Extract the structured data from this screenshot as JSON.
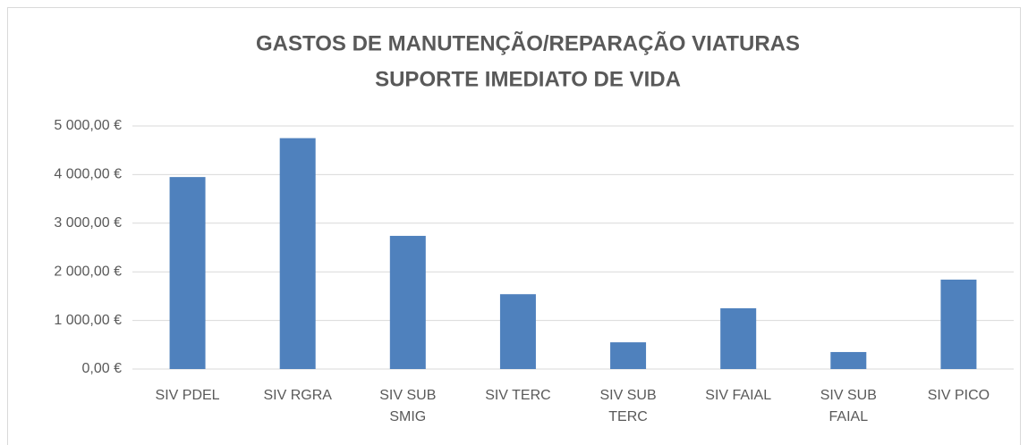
{
  "chart_data": {
    "type": "bar",
    "title": "GASTOS DE MANUTENÇÃO/REPARAÇÃO VIATURAS",
    "subtitle": "SUPORTE IMEDIATO DE VIDA",
    "categories": [
      "SIV PDEL",
      "SIV RGRA",
      "SIV SUB SMIG",
      "SIV TERC",
      "SIV SUB TERC",
      "SIV FAIAL",
      "SIV SUB FAIAL",
      "SIV PICO"
    ],
    "values": [
      3950,
      4750,
      2740,
      1540,
      550,
      1250,
      350,
      1840
    ],
    "color": "#4f81bd",
    "ylim": [
      0,
      5000
    ],
    "yticks": [
      {
        "value": 0,
        "label": "0,00 €"
      },
      {
        "value": 1000,
        "label": "1 000,00 €"
      },
      {
        "value": 2000,
        "label": "2 000,00 €"
      },
      {
        "value": 3000,
        "label": "3 000,00 €"
      },
      {
        "value": 4000,
        "label": "4 000,00 €"
      },
      {
        "value": 5000,
        "label": "5 000,00 €"
      }
    ],
    "grid": true
  }
}
